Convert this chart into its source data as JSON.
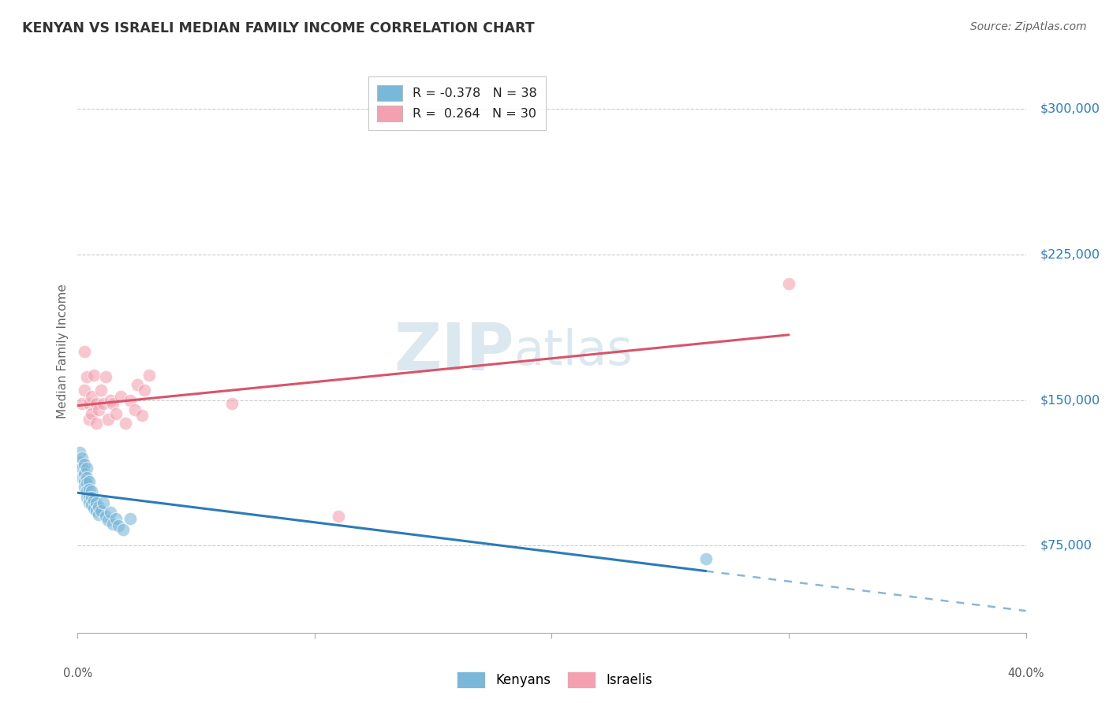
{
  "title": "KENYAN VS ISRAELI MEDIAN FAMILY INCOME CORRELATION CHART",
  "source": "Source: ZipAtlas.com",
  "ylabel": "Median Family Income",
  "xmin": 0.0,
  "xmax": 0.4,
  "ymin": 30000,
  "ymax": 320000,
  "ytick_positions": [
    75000,
    150000,
    225000,
    300000
  ],
  "ytick_labels": [
    "$75,000",
    "$150,000",
    "$225,000",
    "$300,000"
  ],
  "kenyan_dot_color": "#7ab8d9",
  "israeli_dot_color": "#f4a0b0",
  "kenyan_line_color": "#2c7bb6",
  "israeli_line_color": "#d9536a",
  "watermark_color": "#dce8f0",
  "legend_label_1": "R = -0.378   N = 38",
  "legend_label_2": "R =  0.264   N = 30",
  "kenyan_x": [
    0.001,
    0.001,
    0.002,
    0.002,
    0.002,
    0.003,
    0.003,
    0.003,
    0.003,
    0.004,
    0.004,
    0.004,
    0.004,
    0.004,
    0.005,
    0.005,
    0.005,
    0.005,
    0.006,
    0.006,
    0.006,
    0.007,
    0.007,
    0.008,
    0.008,
    0.009,
    0.009,
    0.01,
    0.011,
    0.012,
    0.013,
    0.014,
    0.015,
    0.016,
    0.017,
    0.019,
    0.022,
    0.265
  ],
  "kenyan_y": [
    123000,
    118000,
    120000,
    115000,
    110000,
    117000,
    112000,
    108000,
    105000,
    115000,
    110000,
    107000,
    103000,
    100000,
    108000,
    104000,
    100000,
    97000,
    103000,
    100000,
    96000,
    98000,
    94000,
    97000,
    93000,
    95000,
    91000,
    93000,
    97000,
    90000,
    88000,
    92000,
    86000,
    89000,
    85000,
    83000,
    89000,
    68000
  ],
  "israeli_x": [
    0.002,
    0.003,
    0.003,
    0.004,
    0.005,
    0.005,
    0.006,
    0.006,
    0.007,
    0.008,
    0.008,
    0.009,
    0.01,
    0.011,
    0.012,
    0.013,
    0.014,
    0.015,
    0.016,
    0.018,
    0.02,
    0.022,
    0.024,
    0.025,
    0.027,
    0.028,
    0.03,
    0.065,
    0.11,
    0.3
  ],
  "israeli_y": [
    148000,
    175000,
    155000,
    162000,
    148000,
    140000,
    152000,
    143000,
    163000,
    148000,
    138000,
    145000,
    155000,
    148000,
    162000,
    140000,
    150000,
    148000,
    143000,
    152000,
    138000,
    150000,
    145000,
    158000,
    142000,
    155000,
    163000,
    148000,
    90000,
    210000
  ]
}
